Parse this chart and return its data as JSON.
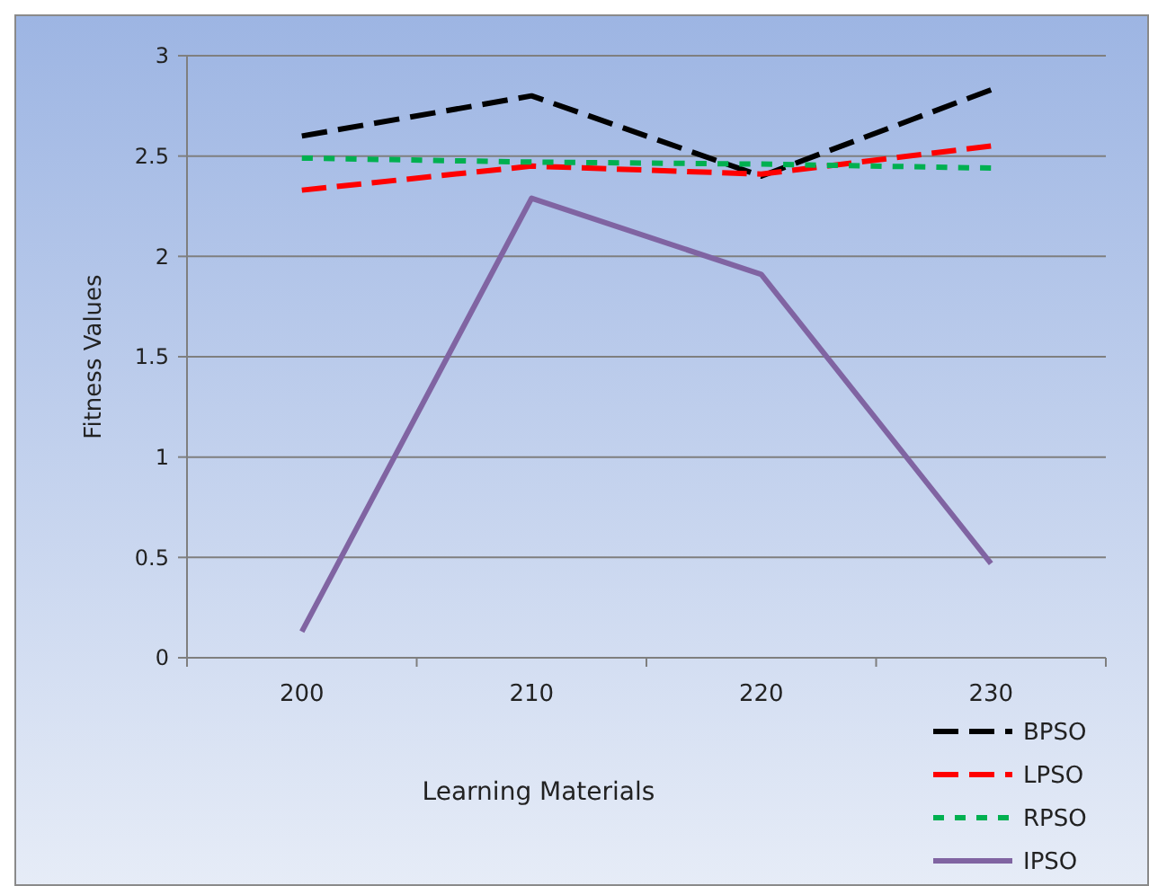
{
  "chart_data": {
    "type": "line",
    "xlabel": "Learning Materials",
    "ylabel": "Fitness Values",
    "categories": [
      "200",
      "210",
      "220",
      "230"
    ],
    "series": [
      {
        "name": "BPSO",
        "color": "#000000",
        "line_style": "dashed",
        "values": [
          2.6,
          2.8,
          2.4,
          2.83
        ]
      },
      {
        "name": "LPSO",
        "color": "#ff0000",
        "line_style": "dashed",
        "values": [
          2.33,
          2.45,
          2.41,
          2.55
        ]
      },
      {
        "name": "RPSO",
        "color": "#00b050",
        "line_style": "dotted",
        "values": [
          2.49,
          2.47,
          2.46,
          2.44
        ]
      },
      {
        "name": "IPSO",
        "color": "#8064a2",
        "line_style": "solid",
        "values": [
          0.13,
          2.29,
          1.91,
          0.47
        ]
      }
    ],
    "ylim": [
      0,
      3
    ],
    "yticks": [
      0,
      0.5,
      1,
      1.5,
      2,
      2.5,
      3
    ],
    "grid": "y",
    "legend": "bottom right",
    "marker": "none"
  }
}
